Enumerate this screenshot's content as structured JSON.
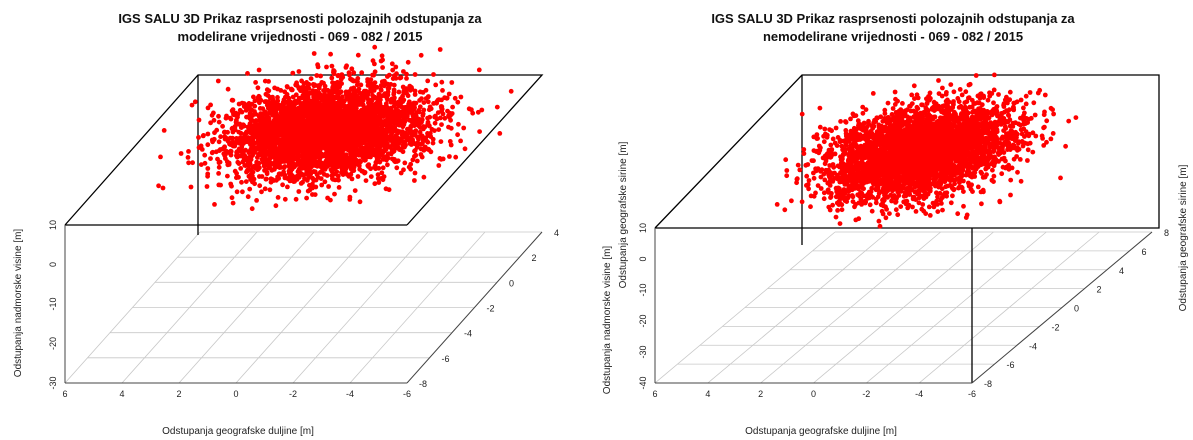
{
  "chart_data": [
    {
      "type": "scatter",
      "title_lines": [
        "IGS SALU 3D Prikaz rasprsenosti polozajnih odstupanja za",
        "modelirane vrijednosti - 069 - 082 / 2015"
      ],
      "xlabel": "Odstupanja geografske duljine [m]",
      "ylabel": "Odstupanja geografske sirine [m]",
      "zlabel": "Odstupanja nadmorske visine [m]",
      "x_ticks": [
        "6",
        "4",
        "2",
        "0",
        "-2",
        "-4",
        "-6"
      ],
      "y_ticks": [
        "-8",
        "-6",
        "-4",
        "-2",
        "0",
        "2",
        "4"
      ],
      "z_ticks": [
        "-30",
        "-20",
        "-10",
        "0",
        "10"
      ],
      "xlim": [
        6,
        -6
      ],
      "ylim": [
        -8,
        4
      ],
      "zlim": [
        -30,
        10
      ],
      "point_color": "#ff0000",
      "cloud": {
        "x_center": 0.6,
        "x_spread": 1.6,
        "y_center": 1.5,
        "y_spread": 1.4,
        "z_center": 3.5,
        "z_spread": 4.0,
        "count": 4200
      }
    },
    {
      "type": "scatter",
      "title_lines": [
        "IGS SALU 3D Prikaz rasprsenosti polozajnih odstupanja za",
        "nemodelirane vrijednosti - 069 - 082 / 2015"
      ],
      "xlabel": "Odstupanja geografske duljine [m]",
      "ylabel": "Odstupanja geografske sirine [m]",
      "zlabel": "Odstupanja nadmorske visine [m]",
      "x_ticks": [
        "6",
        "4",
        "2",
        "0",
        "-2",
        "-4",
        "-6"
      ],
      "y_ticks": [
        "-8",
        "-6",
        "-4",
        "-2",
        "0",
        "2",
        "4",
        "6",
        "8"
      ],
      "z_ticks": [
        "-40",
        "-30",
        "-20",
        "-10",
        "0",
        "10"
      ],
      "xlim": [
        6,
        -6
      ],
      "ylim": [
        -8,
        8
      ],
      "zlim": [
        -40,
        10
      ],
      "point_color": "#ff0000",
      "cloud": {
        "x_center": 0.4,
        "x_spread": 1.5,
        "y_center": 2.5,
        "y_spread": 1.9,
        "z_center": 2.5,
        "z_spread": 4.5,
        "count": 4200
      }
    }
  ]
}
